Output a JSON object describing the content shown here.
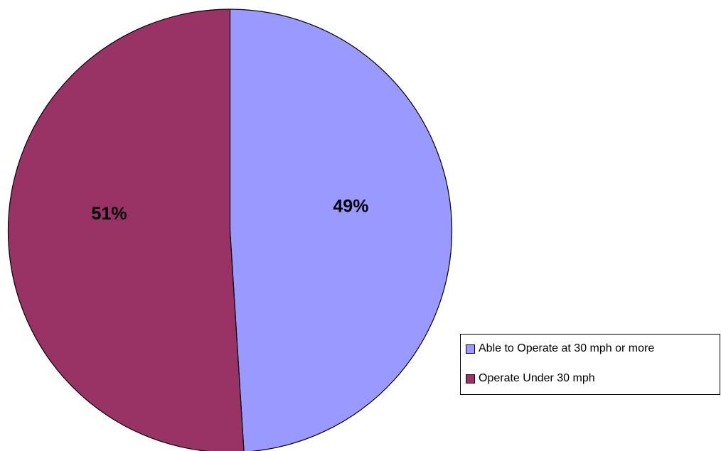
{
  "chart_data": {
    "type": "pie",
    "start_angle_deg": 0,
    "direction": "clockwise",
    "slices": [
      {
        "label": "Able to Operate at 30 mph or more",
        "value": 49,
        "display": "49%",
        "color": "#9999ff"
      },
      {
        "label": "Operate Under 30 mph",
        "value": 51,
        "display": "51%",
        "color": "#993366"
      }
    ],
    "legend_position": "bottom-right",
    "title": ""
  }
}
